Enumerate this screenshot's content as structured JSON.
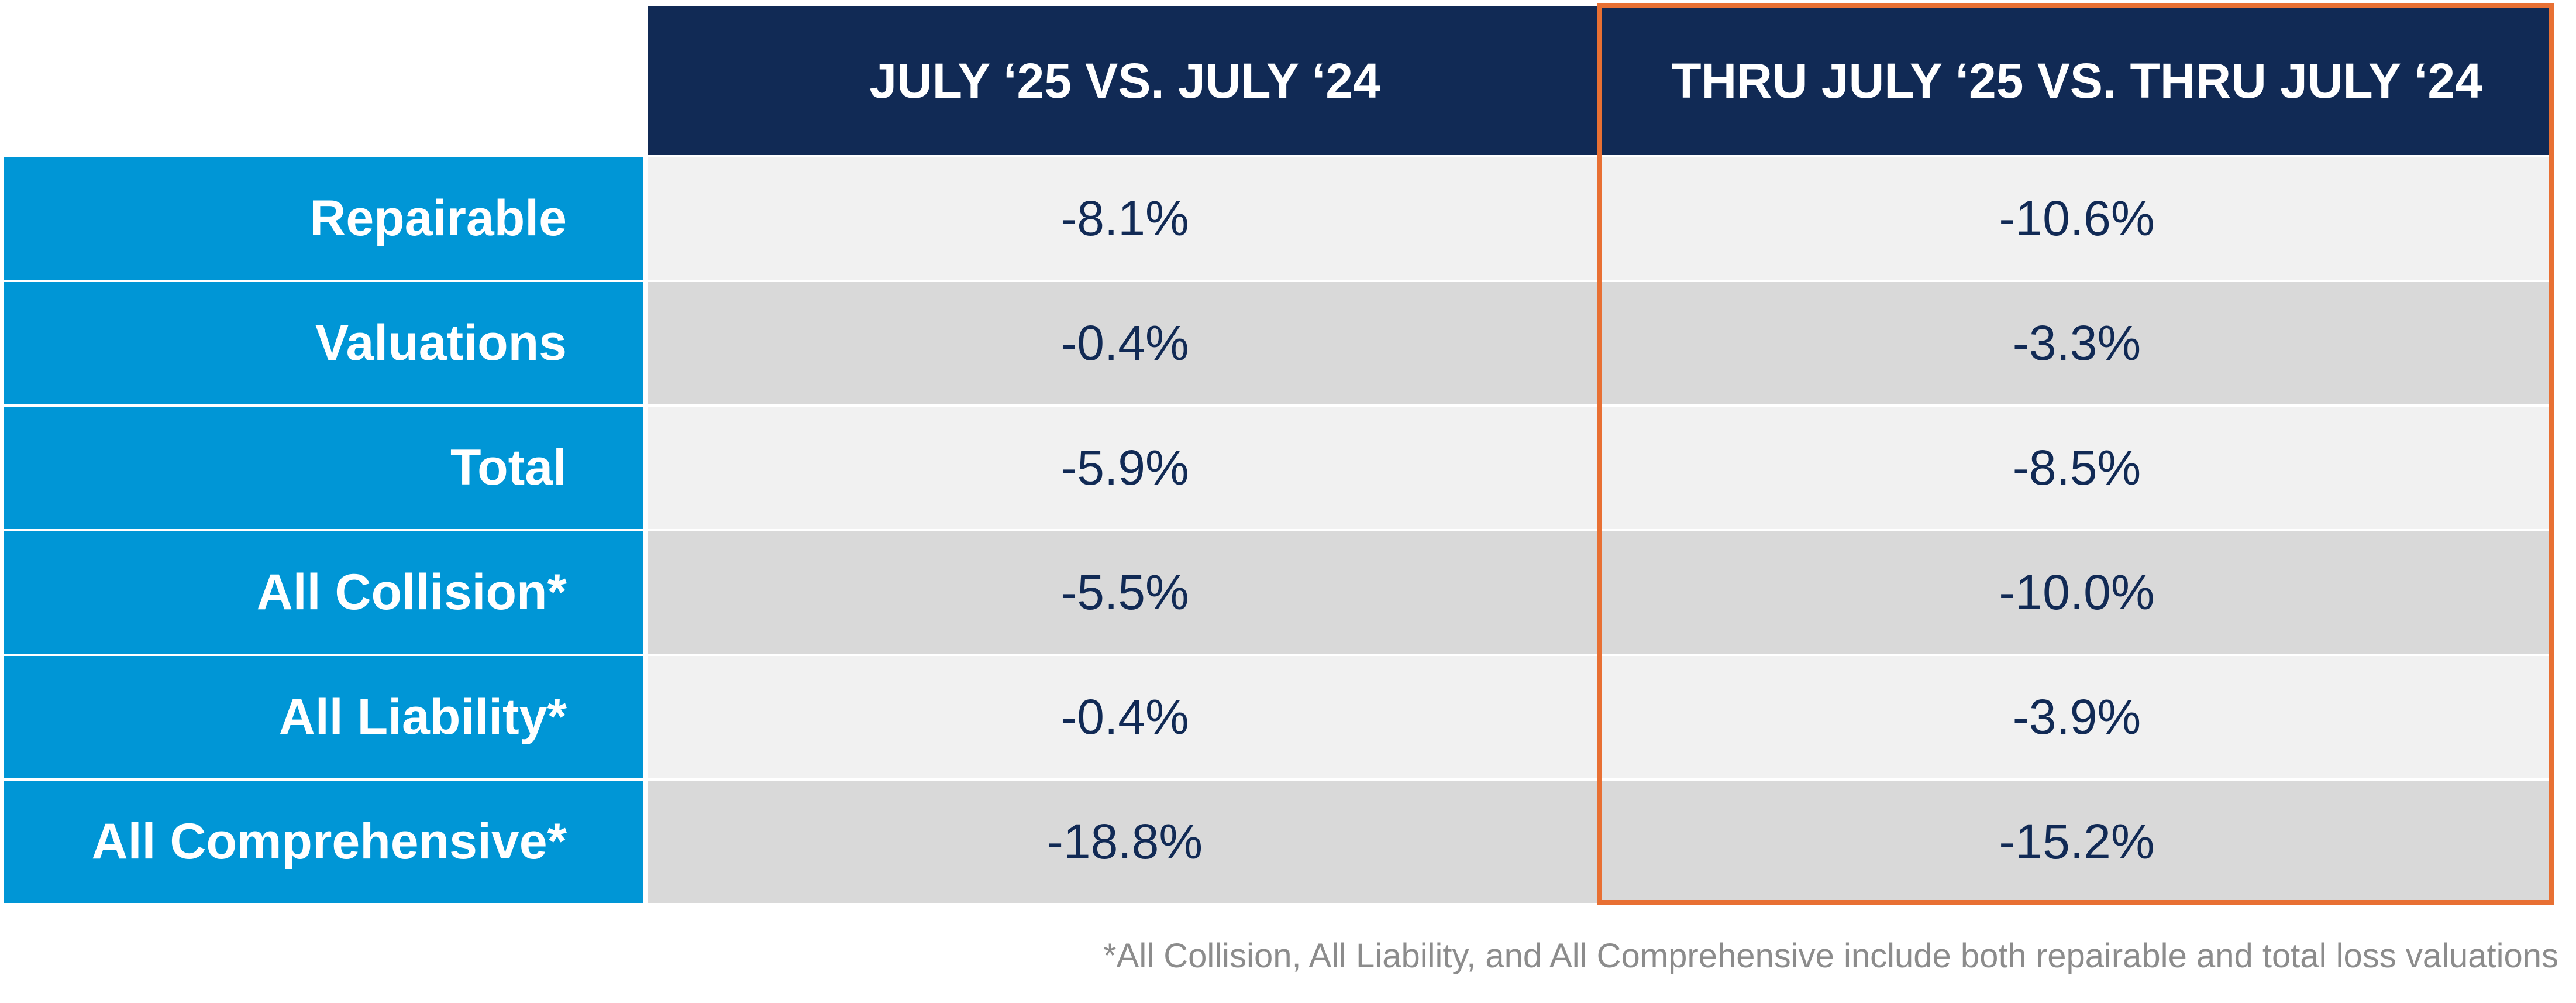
{
  "table": {
    "headers": [
      "",
      "JULY ‘25 VS. JULY ‘24",
      "THRU JULY ‘25 VS. THRU JULY ‘24"
    ],
    "rows": [
      {
        "label": "Repairable",
        "month": "-8.1%",
        "ytd": "-10.6%"
      },
      {
        "label": "Valuations",
        "month": "-0.4%",
        "ytd": "-3.3%"
      },
      {
        "label": "Total",
        "month": "-5.9%",
        "ytd": "-8.5%"
      },
      {
        "label": "All Collision*",
        "month": "-5.5%",
        "ytd": "-10.0%"
      },
      {
        "label": "All Liability*",
        "month": "-0.4%",
        "ytd": "-3.9%"
      },
      {
        "label": "All Comprehensive*",
        "month": "-18.8%",
        "ytd": "-15.2%"
      }
    ],
    "highlight_color": "#e87033",
    "header_color": "#112a55",
    "label_color": "#0096d6"
  },
  "footnote": "*All Collision, All Liability, and All Comprehensive include both repairable and total loss valuations"
}
